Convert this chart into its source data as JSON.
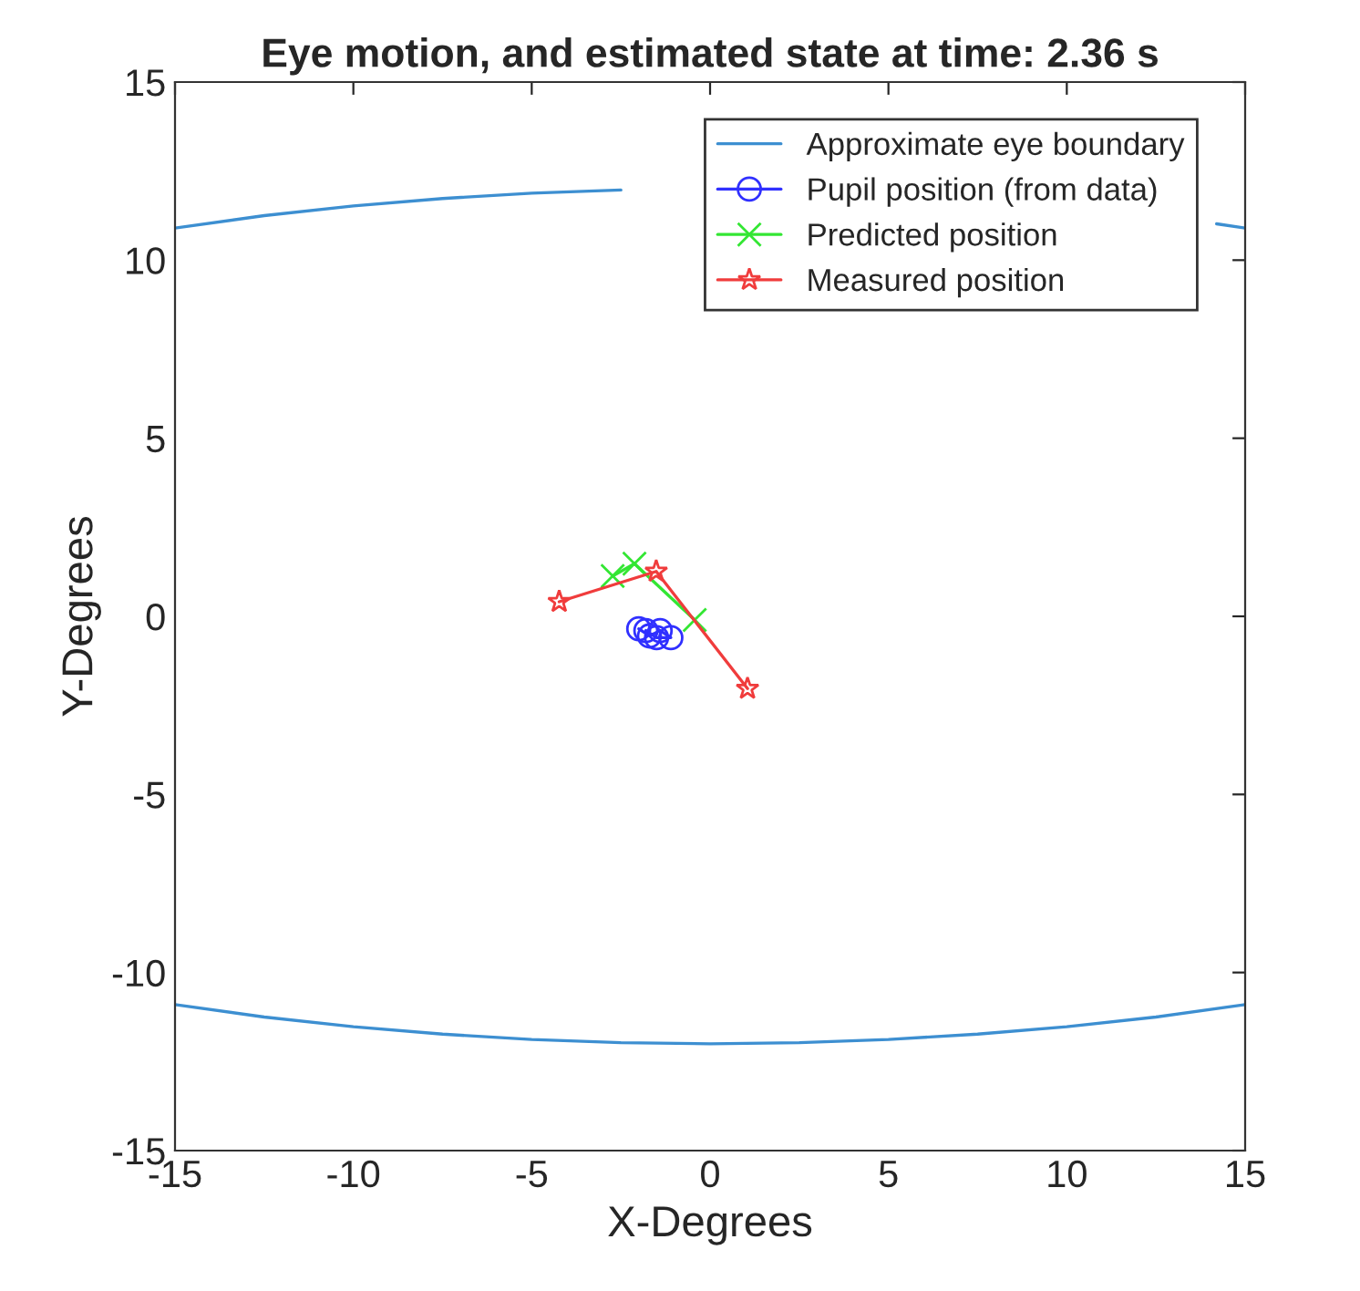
{
  "chart_data": {
    "type": "line",
    "title": "Eye motion, and estimated state at time: 2.36 s",
    "xlabel": "X-Degrees",
    "ylabel": "Y-Degrees",
    "xlim": [
      -15,
      15
    ],
    "ylim": [
      -15,
      15
    ],
    "xticks": [
      -15,
      -10,
      -5,
      0,
      5,
      10,
      15
    ],
    "yticks": [
      -15,
      -10,
      -5,
      0,
      5,
      10,
      15
    ],
    "grid": false,
    "legend": "top right",
    "series": [
      {
        "name": "Approximate eye boundary",
        "color": "#3d8fd1",
        "marker": "none",
        "x": [
          -15,
          -12.5,
          -10,
          -7.5,
          -5,
          -2.5,
          0,
          2.5,
          5,
          7.5,
          10,
          12.5,
          14.2,
          15
        ],
        "values": [
          10.9,
          11.25,
          11.52,
          11.73,
          11.88,
          11.97,
          null,
          null,
          null,
          null,
          null,
          null,
          11.02,
          10.9
        ]
      },
      {
        "color": "#3d8fd1",
        "marker": "none",
        "x": [
          -15,
          -12.5,
          -10,
          -7.5,
          -5,
          -2.5,
          0,
          2.5,
          5,
          7.5,
          10,
          12.5,
          15
        ],
        "values": [
          -10.9,
          -11.25,
          -11.52,
          -11.73,
          -11.88,
          -11.97,
          -12,
          -11.97,
          -11.88,
          -11.73,
          -11.52,
          -11.25,
          -10.9
        ]
      },
      {
        "name": "Pupil position (from data)",
        "color": "#3030ff",
        "marker": "circle",
        "x": [
          -2.0,
          -1.7,
          -1.4,
          -1.1,
          -1.5,
          -1.8
        ],
        "values": [
          -0.35,
          -0.55,
          -0.4,
          -0.6,
          -0.6,
          -0.4
        ]
      },
      {
        "name": "Predicted position",
        "color": "#33e633",
        "marker": "cross",
        "x": [
          -2.73,
          -2.12,
          -0.43
        ],
        "values": [
          1.13,
          1.48,
          -0.1
        ]
      },
      {
        "name": "Measured position",
        "color": "#f03c3c",
        "marker": "star",
        "x": [
          -4.23,
          -1.51,
          1.05
        ],
        "values": [
          0.41,
          1.26,
          -2.03
        ]
      }
    ]
  }
}
